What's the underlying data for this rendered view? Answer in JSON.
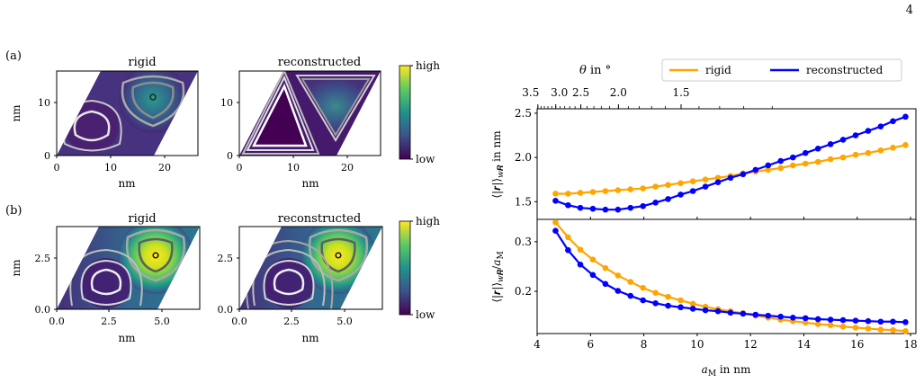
{
  "page_number": "4",
  "panel_labels": {
    "a": "(a)",
    "b": "(b)"
  },
  "heatmaps": {
    "titles": [
      "rigid",
      "reconstructed",
      "rigid",
      "reconstructed"
    ],
    "a_xticks": [
      "0",
      "10",
      "20"
    ],
    "a_yticks": [
      "0",
      "10"
    ],
    "b_xticks": [
      "0.0",
      "2.5",
      "5.0"
    ],
    "b_yticks": [
      "0.0",
      "2.5"
    ],
    "axis_unit": "nm"
  },
  "colorbar": {
    "high": "high",
    "low": "low",
    "colormap": "viridis"
  },
  "chart_data": [
    {
      "type": "line",
      "title": "",
      "xlabel": "a_M in nm",
      "ylabel": "⟨|r|⟩_{w_R} in nm",
      "top_axis_label": "θ in °",
      "top_axis_ticks": [
        "3.5",
        "3.0",
        "2.5",
        "2.0",
        "1.5"
      ],
      "top_axis_tick_values": [
        3.5,
        3.0,
        2.5,
        2.0,
        1.5
      ],
      "xlim": [
        4,
        18.2
      ],
      "ylim": [
        1.3,
        2.55
      ],
      "yticks": [
        "1.5",
        "2.0",
        "2.5"
      ],
      "legend_position": "top",
      "x": [
        4.69,
        5.16,
        5.62,
        6.09,
        6.56,
        7.03,
        7.5,
        7.97,
        8.44,
        8.91,
        9.38,
        9.84,
        10.31,
        10.78,
        11.25,
        11.72,
        12.19,
        12.66,
        13.13,
        13.59,
        14.06,
        14.53,
        15.0,
        15.47,
        15.94,
        16.41,
        16.88,
        17.34,
        17.81
      ],
      "series": [
        {
          "name": "rigid",
          "color": "#FFA500",
          "values": [
            1.59,
            1.59,
            1.6,
            1.61,
            1.62,
            1.63,
            1.64,
            1.65,
            1.67,
            1.69,
            1.71,
            1.73,
            1.75,
            1.77,
            1.79,
            1.82,
            1.84,
            1.86,
            1.88,
            1.91,
            1.93,
            1.95,
            1.98,
            2.0,
            2.03,
            2.05,
            2.08,
            2.11,
            2.14
          ]
        },
        {
          "name": "reconstructed",
          "color": "#0000FF",
          "values": [
            1.51,
            1.46,
            1.43,
            1.42,
            1.41,
            1.41,
            1.43,
            1.45,
            1.49,
            1.53,
            1.58,
            1.62,
            1.67,
            1.72,
            1.77,
            1.81,
            1.86,
            1.91,
            1.96,
            2.0,
            2.05,
            2.1,
            2.15,
            2.2,
            2.25,
            2.3,
            2.35,
            2.41,
            2.46
          ]
        }
      ]
    },
    {
      "type": "line",
      "title": "",
      "xlabel": "a_M in nm",
      "ylabel": "⟨|r|⟩_{w_R}/a_M",
      "xlim": [
        4,
        18.2
      ],
      "ylim": [
        0.115,
        0.345
      ],
      "xticks": [
        "4",
        "6",
        "8",
        "10",
        "12",
        "14",
        "16",
        "18"
      ],
      "yticks": [
        "0.2",
        "0.3"
      ],
      "x": [
        4.69,
        5.16,
        5.62,
        6.09,
        6.56,
        7.03,
        7.5,
        7.97,
        8.44,
        8.91,
        9.38,
        9.84,
        10.31,
        10.78,
        11.25,
        11.72,
        12.19,
        12.66,
        13.13,
        13.59,
        14.06,
        14.53,
        15.0,
        15.47,
        15.94,
        16.41,
        16.88,
        17.34,
        17.81
      ],
      "series": [
        {
          "name": "rigid",
          "color": "#FFA500",
          "values": [
            0.339,
            0.309,
            0.284,
            0.264,
            0.247,
            0.232,
            0.219,
            0.207,
            0.197,
            0.189,
            0.182,
            0.175,
            0.169,
            0.164,
            0.16,
            0.156,
            0.151,
            0.147,
            0.143,
            0.14,
            0.137,
            0.134,
            0.132,
            0.129,
            0.127,
            0.125,
            0.123,
            0.122,
            0.12
          ]
        },
        {
          "name": "reconstructed",
          "color": "#0000FF",
          "values": [
            0.322,
            0.283,
            0.254,
            0.233,
            0.215,
            0.201,
            0.191,
            0.182,
            0.176,
            0.171,
            0.168,
            0.165,
            0.162,
            0.16,
            0.157,
            0.155,
            0.153,
            0.151,
            0.149,
            0.147,
            0.146,
            0.144,
            0.143,
            0.142,
            0.141,
            0.14,
            0.139,
            0.139,
            0.138
          ]
        }
      ]
    }
  ],
  "legend": {
    "rigid": "rigid",
    "reconstructed": "reconstructed"
  }
}
